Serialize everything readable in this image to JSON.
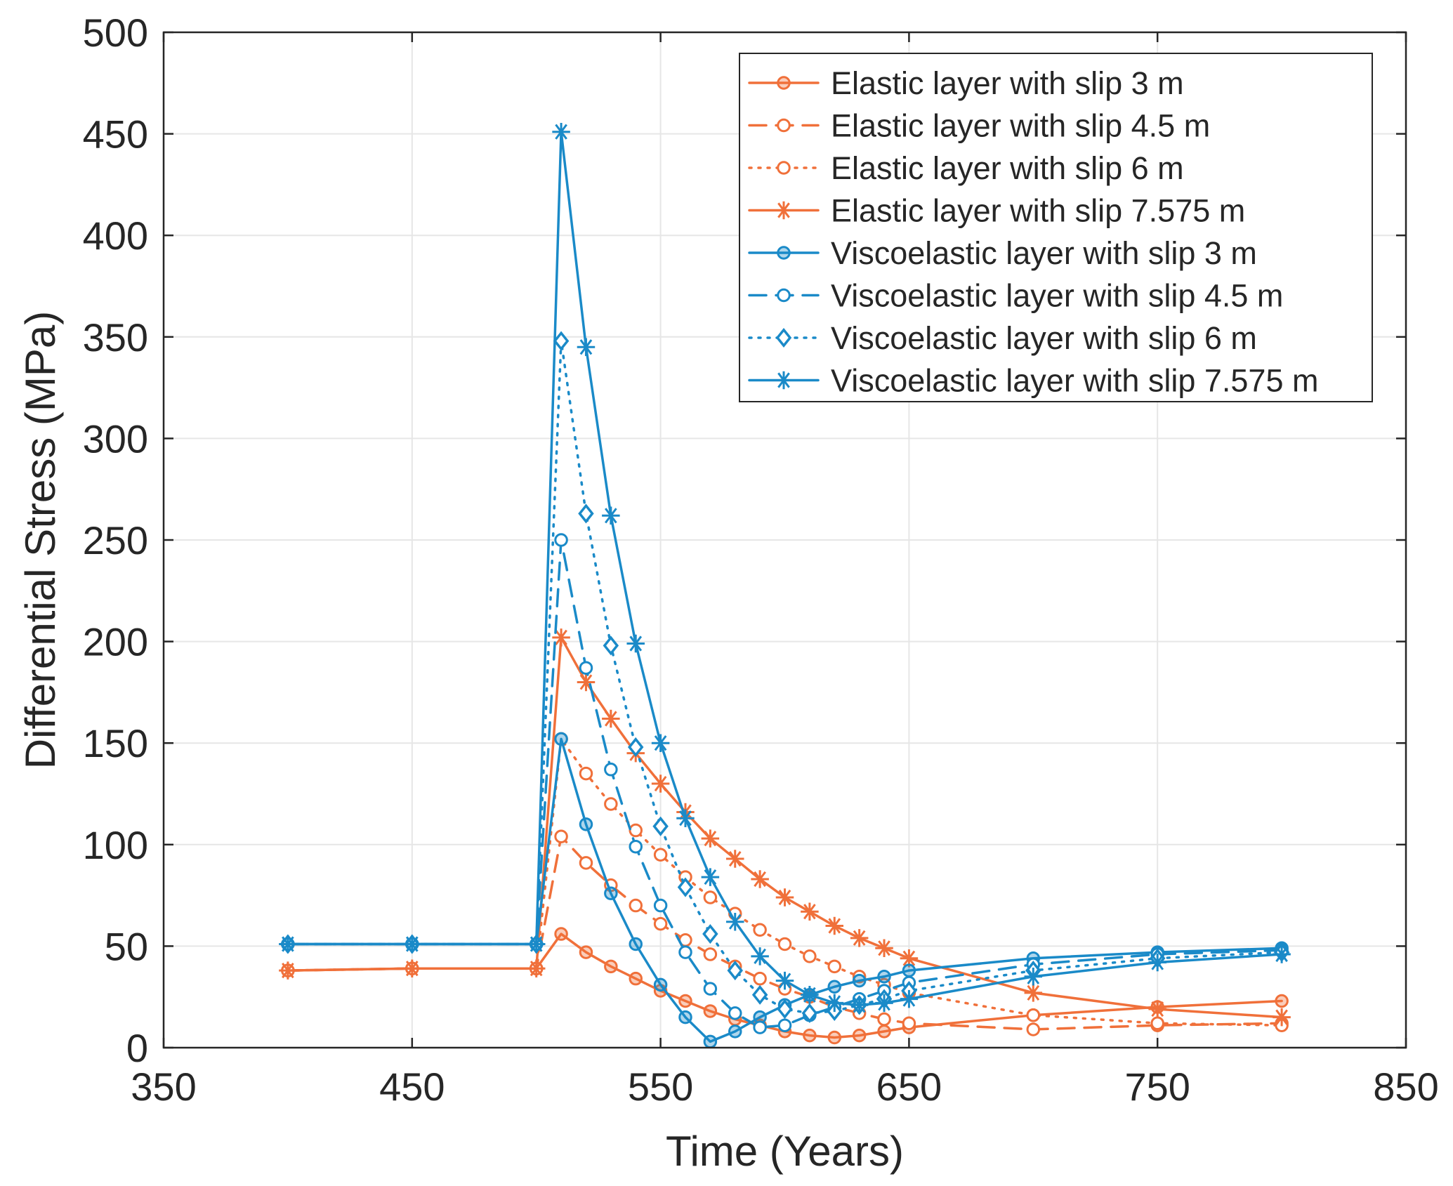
{
  "chart_data": {
    "type": "line",
    "title": "",
    "xlabel": "Time (Years)",
    "ylabel": "Differential Stress (MPa)",
    "xlim": [
      350,
      850
    ],
    "ylim": [
      0,
      500
    ],
    "xticks": [
      350,
      450,
      550,
      650,
      750,
      850
    ],
    "yticks": [
      0,
      50,
      100,
      150,
      200,
      250,
      300,
      350,
      400,
      450,
      500
    ],
    "grid": true,
    "legend_position": "top-right",
    "colors": {
      "elastic": "#f0703a",
      "viscoelastic": "#1a8ac8"
    },
    "series": [
      {
        "name": "Elastic layer with slip 3 m",
        "color": "#f0703a",
        "line": "solid",
        "marker": "circle",
        "x": [
          400,
          450,
          500,
          510,
          520,
          530,
          540,
          550,
          560,
          570,
          580,
          590,
          600,
          610,
          620,
          630,
          640,
          650,
          700,
          750,
          800
        ],
        "y": [
          38,
          39,
          39,
          56,
          47,
          40,
          34,
          28,
          23,
          18,
          14,
          11,
          8,
          6,
          5,
          6,
          8,
          10,
          16,
          20,
          23
        ]
      },
      {
        "name": "Elastic layer with slip 4.5 m",
        "color": "#f0703a",
        "line": "dashed",
        "marker": "circle-open",
        "x": [
          400,
          450,
          500,
          510,
          520,
          530,
          540,
          550,
          560,
          570,
          580,
          590,
          600,
          610,
          620,
          630,
          640,
          650,
          700,
          750,
          800
        ],
        "y": [
          38,
          39,
          39,
          104,
          91,
          80,
          70,
          61,
          53,
          46,
          40,
          34,
          29,
          25,
          20,
          17,
          14,
          12,
          9,
          11,
          12
        ]
      },
      {
        "name": "Elastic layer with slip 6 m",
        "color": "#f0703a",
        "line": "dotted",
        "marker": "circle-open",
        "x": [
          400,
          450,
          500,
          510,
          520,
          530,
          540,
          550,
          560,
          570,
          580,
          590,
          600,
          610,
          620,
          630,
          640,
          650,
          700,
          750,
          800
        ],
        "y": [
          38,
          39,
          39,
          152,
          135,
          120,
          107,
          95,
          84,
          74,
          66,
          58,
          51,
          45,
          40,
          35,
          31,
          27,
          16,
          12,
          11
        ]
      },
      {
        "name": "Elastic layer with slip 7.575 m",
        "color": "#f0703a",
        "line": "solid",
        "marker": "asterisk",
        "x": [
          400,
          450,
          500,
          510,
          520,
          530,
          540,
          550,
          560,
          570,
          580,
          590,
          600,
          610,
          620,
          630,
          640,
          650,
          700,
          750,
          800
        ],
        "y": [
          38,
          39,
          39,
          202,
          180,
          162,
          145,
          130,
          116,
          103,
          93,
          83,
          74,
          67,
          60,
          54,
          49,
          44,
          27,
          19,
          15
        ]
      },
      {
        "name": "Viscoelastic layer with slip 3 m",
        "color": "#1a8ac8",
        "line": "solid",
        "marker": "circle",
        "x": [
          400,
          450,
          500,
          510,
          520,
          530,
          540,
          550,
          560,
          570,
          580,
          590,
          600,
          610,
          620,
          630,
          640,
          650,
          700,
          750,
          800
        ],
        "y": [
          51,
          51,
          51,
          152,
          110,
          76,
          51,
          31,
          15,
          3,
          8,
          15,
          21,
          26,
          30,
          33,
          35,
          38,
          44,
          47,
          49
        ]
      },
      {
        "name": "Viscoelastic layer with slip 4.5 m",
        "color": "#1a8ac8",
        "line": "dashed",
        "marker": "circle-open",
        "x": [
          400,
          450,
          500,
          510,
          520,
          530,
          540,
          550,
          560,
          570,
          580,
          590,
          600,
          610,
          620,
          630,
          640,
          650,
          700,
          750,
          800
        ],
        "y": [
          51,
          51,
          51,
          250,
          187,
          137,
          99,
          70,
          47,
          29,
          17,
          10,
          11,
          16,
          20,
          24,
          28,
          32,
          41,
          46,
          48
        ]
      },
      {
        "name": "Viscoelastic layer with slip 6 m",
        "color": "#1a8ac8",
        "line": "dotted",
        "marker": "diamond",
        "x": [
          400,
          450,
          500,
          510,
          520,
          530,
          540,
          550,
          560,
          570,
          580,
          590,
          600,
          610,
          620,
          630,
          640,
          650,
          700,
          750,
          800
        ],
        "y": [
          51,
          51,
          51,
          348,
          263,
          198,
          148,
          109,
          79,
          56,
          38,
          26,
          19,
          17,
          18,
          21,
          24,
          28,
          38,
          44,
          47
        ]
      },
      {
        "name": "Viscoelastic layer with slip 7.575 m",
        "color": "#1a8ac8",
        "line": "solid",
        "marker": "asterisk",
        "x": [
          400,
          450,
          500,
          510,
          520,
          530,
          540,
          550,
          560,
          570,
          580,
          590,
          600,
          610,
          620,
          630,
          640,
          650,
          700,
          750,
          800
        ],
        "y": [
          51,
          51,
          51,
          451,
          345,
          262,
          199,
          150,
          113,
          84,
          62,
          45,
          33,
          26,
          22,
          21,
          22,
          24,
          35,
          42,
          46
        ]
      }
    ]
  }
}
